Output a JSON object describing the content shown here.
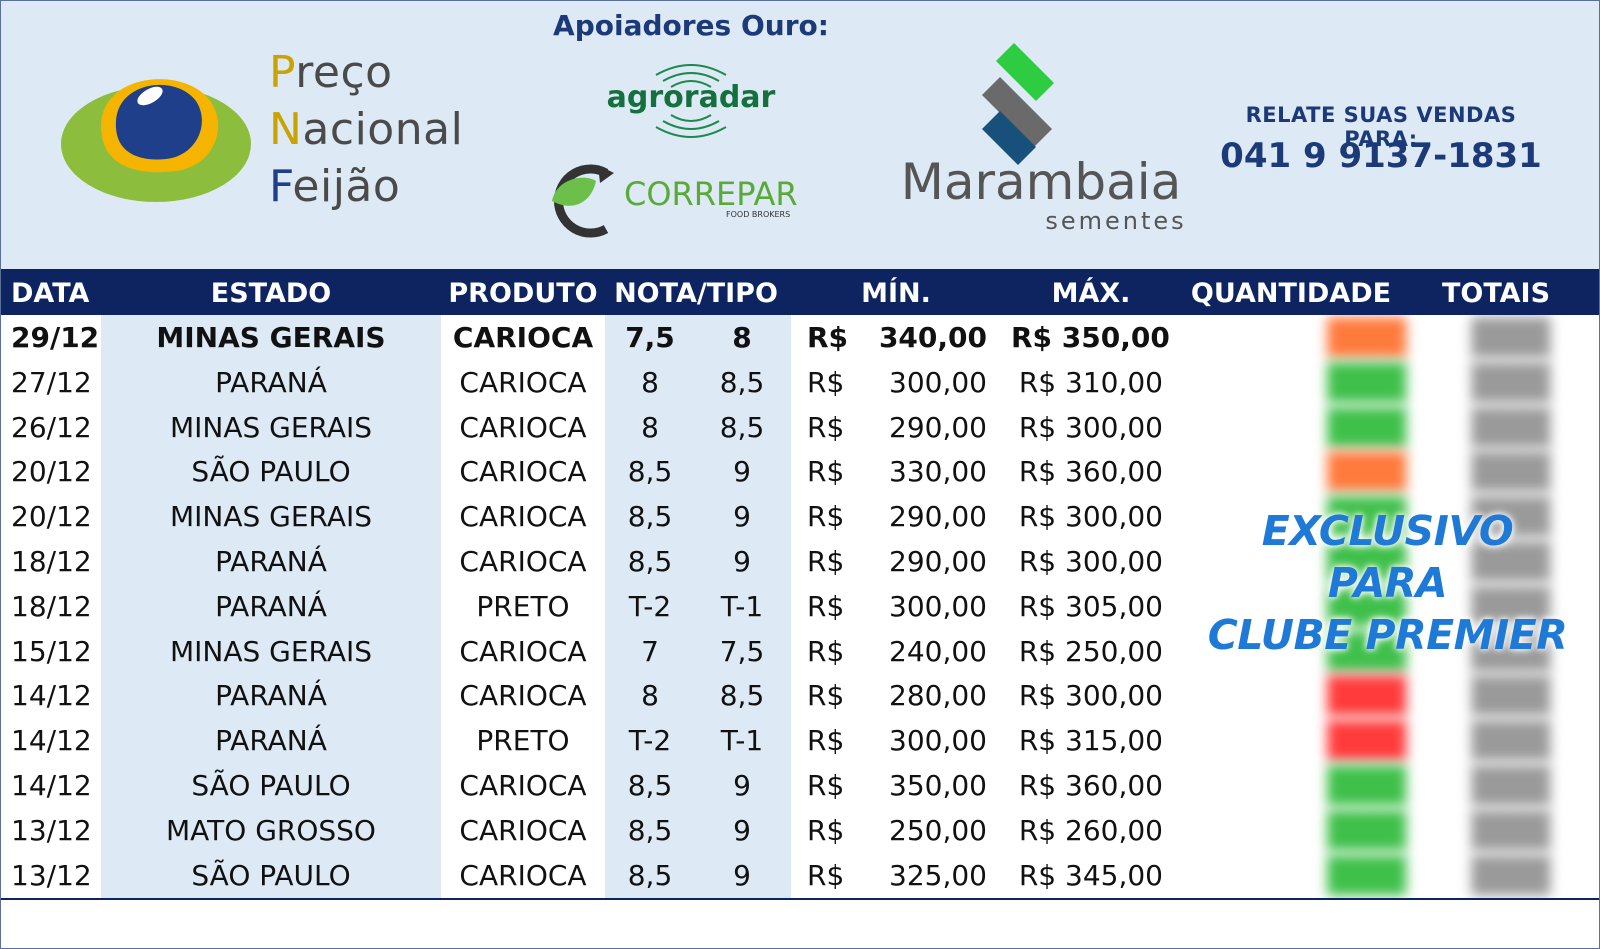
{
  "header": {
    "logo": {
      "line1_cap": "P",
      "line1_rest": "reço",
      "line2_cap": "N",
      "line2_rest": "acional",
      "line3_cap": "F",
      "line3_rest": "eijão"
    },
    "sponsors_title": "Apoiadores Ouro:",
    "sponsor_agroradar": "agroradar",
    "sponsor_correpar": "CORREPAR",
    "sponsor_correpar_sub": "FOOD BROKERS",
    "sponsor_marambaia": "Marambaia",
    "sponsor_marambaia_sub": "sementes",
    "relate_label": "RELATE SUAS VENDAS PARA:",
    "relate_phone": "041 9 9137-1831"
  },
  "table": {
    "headers": {
      "data": "DATA",
      "estado": "ESTADO",
      "produto": "PRODUTO",
      "nota_tipo": "NOTA/TIPO",
      "min": "MÍN.",
      "max": "MÁX.",
      "quantidade": "QUANTIDADE",
      "totais": "TOTAIS"
    },
    "rows": [
      {
        "date": "29/12",
        "state": "MINAS GERAIS",
        "product": "CARIOCA",
        "grade_from": "7,5",
        "grade_to": "8",
        "currency": "R$",
        "min": "340,00",
        "max": "R$ 350,00"
      },
      {
        "date": "27/12",
        "state": "PARANÁ",
        "product": "CARIOCA",
        "grade_from": "8",
        "grade_to": "8,5",
        "currency": "R$",
        "min": "300,00",
        "max": "R$ 310,00"
      },
      {
        "date": "26/12",
        "state": "MINAS GERAIS",
        "product": "CARIOCA",
        "grade_from": "8",
        "grade_to": "8,5",
        "currency": "R$",
        "min": "290,00",
        "max": "R$ 300,00"
      },
      {
        "date": "20/12",
        "state": "SÃO PAULO",
        "product": "CARIOCA",
        "grade_from": "8,5",
        "grade_to": "9",
        "currency": "R$",
        "min": "330,00",
        "max": "R$ 360,00"
      },
      {
        "date": "20/12",
        "state": "MINAS GERAIS",
        "product": "CARIOCA",
        "grade_from": "8,5",
        "grade_to": "9",
        "currency": "R$",
        "min": "290,00",
        "max": "R$ 300,00"
      },
      {
        "date": "18/12",
        "state": "PARANÁ",
        "product": "CARIOCA",
        "grade_from": "8,5",
        "grade_to": "9",
        "currency": "R$",
        "min": "290,00",
        "max": "R$ 300,00"
      },
      {
        "date": "18/12",
        "state": "PARANÁ",
        "product": "PRETO",
        "grade_from": "T-2",
        "grade_to": "T-1",
        "currency": "R$",
        "min": "300,00",
        "max": "R$ 305,00"
      },
      {
        "date": "15/12",
        "state": "MINAS GERAIS",
        "product": "CARIOCA",
        "grade_from": "7",
        "grade_to": "7,5",
        "currency": "R$",
        "min": "240,00",
        "max": "R$ 250,00"
      },
      {
        "date": "14/12",
        "state": "PARANÁ",
        "product": "CARIOCA",
        "grade_from": "8",
        "grade_to": "8,5",
        "currency": "R$",
        "min": "280,00",
        "max": "R$ 300,00"
      },
      {
        "date": "14/12",
        "state": "PARANÁ",
        "product": "PRETO",
        "grade_from": "T-2",
        "grade_to": "T-1",
        "currency": "R$",
        "min": "300,00",
        "max": "R$ 315,00"
      },
      {
        "date": "14/12",
        "state": "SÃO PAULO",
        "product": "CARIOCA",
        "grade_from": "8,5",
        "grade_to": "9",
        "currency": "R$",
        "min": "350,00",
        "max": "R$ 360,00"
      },
      {
        "date": "13/12",
        "state": "MATO GROSSO",
        "product": "CARIOCA",
        "grade_from": "8,5",
        "grade_to": "9",
        "currency": "R$",
        "min": "250,00",
        "max": "R$ 260,00"
      },
      {
        "date": "13/12",
        "state": "SÃO PAULO",
        "product": "CARIOCA",
        "grade_from": "8,5",
        "grade_to": "9",
        "currency": "R$",
        "min": "325,00",
        "max": "R$ 345,00"
      }
    ]
  },
  "exclusive": {
    "line1": "EXCLUSIVO",
    "line2": "PARA",
    "line3": "CLUBE PREMIER",
    "blurred_colors": [
      "#ff7a3d",
      "#3fc04a",
      "#3fc04a",
      "#ff7a3d",
      "#3fc04a",
      "#3fc04a",
      "#3fc04a",
      "#3fc04a",
      "#ff3b3b",
      "#ff3b3b",
      "#3fc04a",
      "#3fc04a",
      "#3fc04a"
    ]
  },
  "colors": {
    "header_band": "#dde9f5",
    "table_header": "#0e2461",
    "brand_blue": "#1c3a78",
    "exclusive_text": "#1e7ad6"
  }
}
